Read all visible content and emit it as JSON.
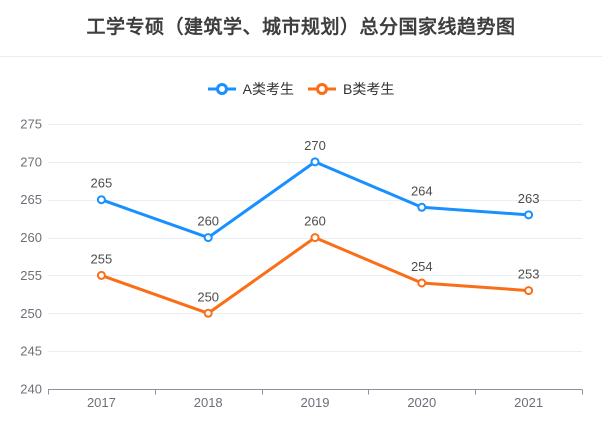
{
  "chart_data": {
    "type": "line",
    "title": "工学专硕（建筑学、城市规划）总分国家线趋势图",
    "categories": [
      "2017",
      "2018",
      "2019",
      "2020",
      "2021"
    ],
    "series": [
      {
        "name": "A类考生",
        "color": "#1890ff",
        "values": [
          265,
          260,
          270,
          264,
          263
        ]
      },
      {
        "name": "B类考生",
        "color": "#fa6e17",
        "values": [
          255,
          250,
          260,
          254,
          253
        ]
      }
    ],
    "ylim": [
      240,
      275
    ],
    "ytick_step": 5,
    "grid": true,
    "legend_position": "top",
    "data_labels": true,
    "xlabel": "",
    "ylabel": ""
  },
  "colors": {
    "background": "#ffffff",
    "title_text": "#3e3e3e",
    "legend_text": "#333333",
    "axis_label": "#6e7079",
    "data_label": "#4d4d4d",
    "grid_line": "#e8eef6",
    "axis_line": "#8a919f",
    "divider": "#ececec",
    "marker_fill": "#ffffff"
  }
}
